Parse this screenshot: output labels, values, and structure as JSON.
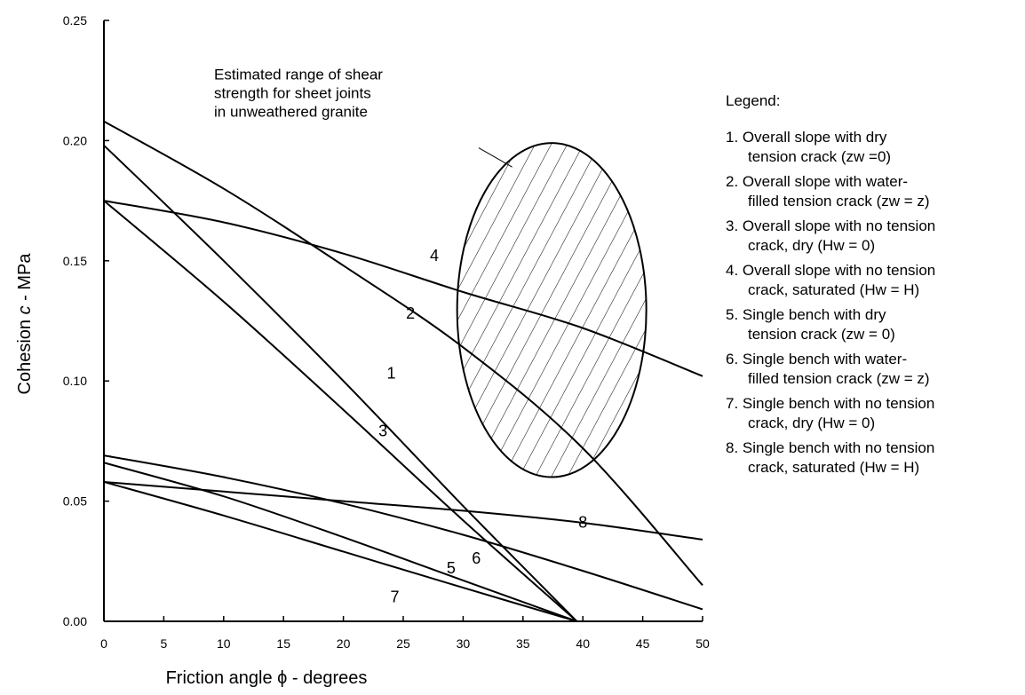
{
  "chart_data": {
    "type": "line",
    "xlabel": "Friction angle ϕ  - degrees",
    "ylabel": "Cohesion c - MPa",
    "ylabel_parts": [
      "Cohesion ",
      "c",
      " - MPa"
    ],
    "xlim": [
      0,
      50
    ],
    "ylim": [
      0,
      0.25
    ],
    "x_ticks": [
      0,
      5,
      10,
      15,
      20,
      25,
      30,
      35,
      40,
      45,
      50
    ],
    "x_tick_labels": [
      "0",
      "5",
      "10",
      "15",
      "20",
      "25",
      "30",
      "35",
      "40",
      "45",
      "50"
    ],
    "y_ticks": [
      0,
      0.05,
      0.1,
      0.15,
      0.2,
      0.25
    ],
    "y_tick_labels": [
      "0.00",
      "0.05",
      "0.10",
      "0.15",
      "0.20",
      "0.25"
    ],
    "grid": false,
    "series": [
      {
        "label": "1",
        "x": [
          0,
          10,
          20,
          30,
          39.5
        ],
        "y": [
          0.198,
          0.15,
          0.1,
          0.048,
          0
        ]
      },
      {
        "label": "2",
        "x": [
          0,
          10,
          20,
          30,
          40,
          50
        ],
        "y": [
          0.208,
          0.18,
          0.148,
          0.114,
          0.072,
          0.015
        ]
      },
      {
        "label": "3",
        "x": [
          0,
          10,
          20,
          30,
          39.5
        ],
        "y": [
          0.175,
          0.133,
          0.088,
          0.042,
          0
        ]
      },
      {
        "label": "4",
        "x": [
          0,
          10,
          20,
          30,
          40,
          50
        ],
        "y": [
          0.175,
          0.166,
          0.153,
          0.137,
          0.122,
          0.102
        ]
      },
      {
        "label": "5",
        "x": [
          0,
          10,
          20,
          30,
          39.5
        ],
        "y": [
          0.066,
          0.052,
          0.035,
          0.017,
          0
        ]
      },
      {
        "label": "6",
        "x": [
          0,
          10,
          20,
          30,
          40,
          50
        ],
        "y": [
          0.069,
          0.06,
          0.049,
          0.036,
          0.021,
          0.005
        ]
      },
      {
        "label": "7",
        "x": [
          0,
          10,
          20,
          30,
          39.5
        ],
        "y": [
          0.058,
          0.044,
          0.029,
          0.014,
          0
        ]
      },
      {
        "label": "8",
        "x": [
          0,
          10,
          20,
          30,
          40,
          50
        ],
        "y": [
          0.058,
          0.054,
          0.05,
          0.046,
          0.041,
          0.034
        ]
      }
    ],
    "series_labels": [
      {
        "text": "1",
        "x": 24.0,
        "y": 0.101
      },
      {
        "text": "2",
        "x": 25.6,
        "y": 0.126
      },
      {
        "text": "3",
        "x": 23.3,
        "y": 0.077
      },
      {
        "text": "4",
        "x": 27.6,
        "y": 0.15
      },
      {
        "text": "5",
        "x": 29.0,
        "y": 0.02
      },
      {
        "text": "6",
        "x": 31.1,
        "y": 0.024
      },
      {
        "text": "7",
        "x": 24.3,
        "y": 0.008
      },
      {
        "text": "8",
        "x": 40.0,
        "y": 0.039
      }
    ],
    "region": {
      "shape": "ellipse",
      "fill": "diagonal hatching",
      "center_x": 37.4,
      "center_y": 0.1295,
      "radius_x": 7.9,
      "radius_y": 0.0695
    },
    "annotation": {
      "lines": [
        "Estimated range of shear",
        "strength for sheet joints",
        "in unweathered granite"
      ],
      "x": 9.2,
      "y": 0.2255,
      "arrow_from": [
        31.3,
        0.197
      ],
      "arrow_to": [
        34.1,
        0.189
      ]
    }
  },
  "legend": {
    "title": "Legend:",
    "items": [
      {
        "line1": "1. Overall slope with dry",
        "line2": "tension crack (zw =0)"
      },
      {
        "line1": "2. Overall slope with water-",
        "line2": "filled tension crack (zw = z)"
      },
      {
        "line1": "3. Overall slope with no tension",
        "line2": "crack, dry (Hw = 0)"
      },
      {
        "line1": "4. Overall slope with no tension",
        "line2": "crack, saturated  (Hw = H)"
      },
      {
        "line1": "5. Single bench with dry",
        "line2": "tension crack (zw = 0)"
      },
      {
        "line1": "6. Single bench with water-",
        "line2": "filled tension crack (zw = z)"
      },
      {
        "line1": "7. Single bench with no tension",
        "line2": "crack, dry (Hw = 0)"
      },
      {
        "line1": "8. Single bench with no tension",
        "line2": "crack, saturated  (Hw = H)"
      }
    ]
  }
}
